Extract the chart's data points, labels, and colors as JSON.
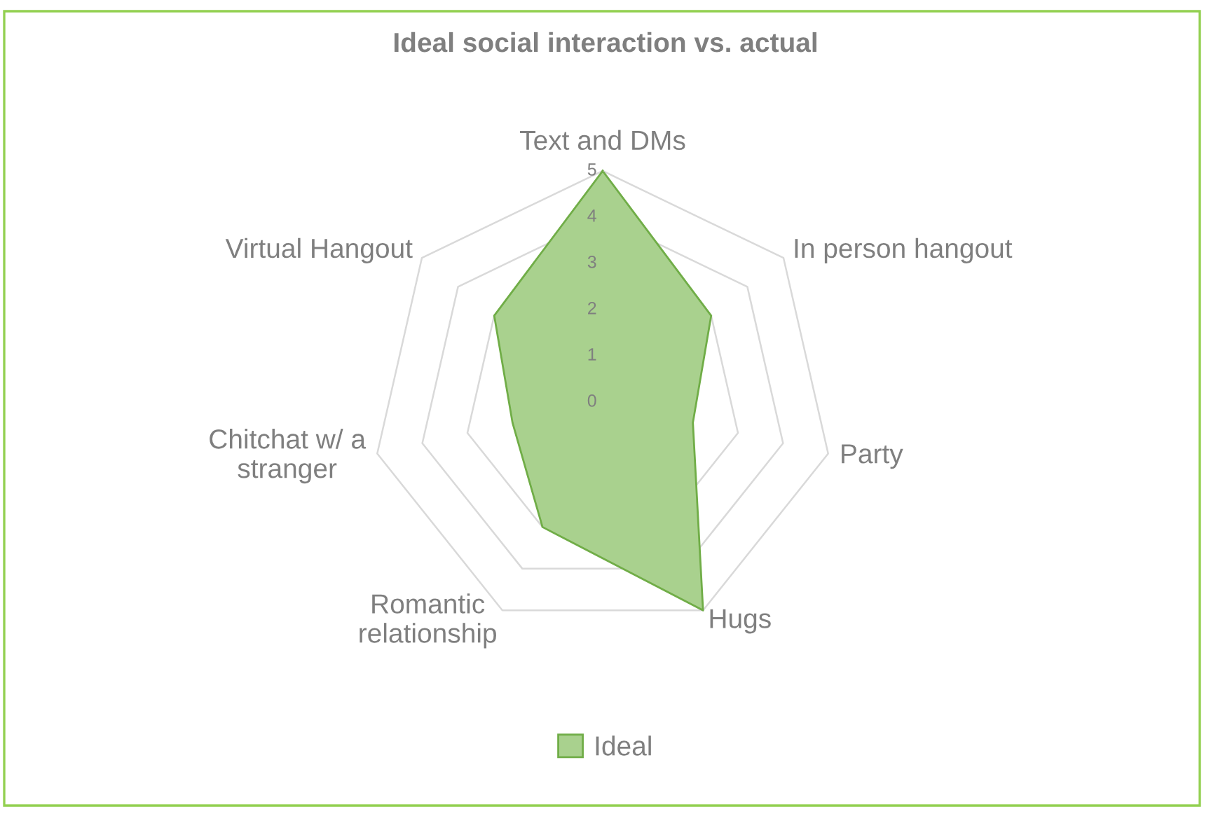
{
  "chart_data": {
    "type": "radar",
    "title": "Ideal social interaction vs. actual",
    "categories": [
      "Text and DMs",
      "In person hangout",
      "Party",
      "Hugs",
      "Romantic relationship",
      "Chitchat w/ a stranger",
      "Virtual Hangout"
    ],
    "series": [
      {
        "name": "Ideal",
        "color": "#a9d18e",
        "values": [
          5,
          3,
          2,
          5,
          3,
          2,
          3
        ]
      }
    ],
    "ylim": [
      0,
      5
    ],
    "yticks": [
      0,
      1,
      2,
      3,
      4,
      5
    ],
    "grid": true,
    "legend": "bottom"
  }
}
